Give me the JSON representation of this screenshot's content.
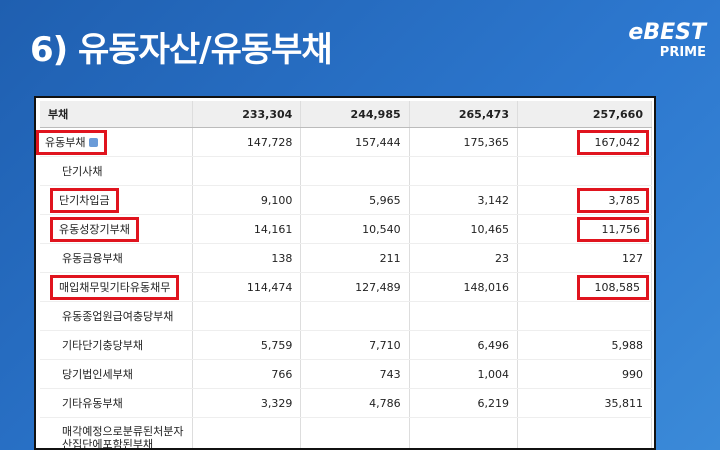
{
  "header": {
    "title": "6) 유동자산/유동부채"
  },
  "logo": {
    "brand": "eBEST",
    "sub": "PRIME"
  },
  "table": {
    "rows": [
      [
        "부채",
        "233,304",
        "244,985",
        "265,473",
        "257,660"
      ],
      [
        "유동부채",
        "147,728",
        "157,444",
        "175,365",
        "167,042"
      ],
      [
        "단기사채",
        null,
        null,
        null,
        null
      ],
      [
        "단기차입금",
        "9,100",
        "5,965",
        "3,142",
        "3,785"
      ],
      [
        "유동성장기부채",
        "14,161",
        "10,540",
        "10,465",
        "11,756"
      ],
      [
        "유동금융부채",
        "138",
        "211",
        "23",
        "127"
      ],
      [
        "매입채무및기타유동채무",
        "114,474",
        "127,489",
        "148,016",
        "108,585"
      ],
      [
        "유동종업원급여충당부채",
        null,
        null,
        null,
        null
      ],
      [
        "기타단기충당부채",
        "5,759",
        "7,710",
        "6,496",
        "5,988"
      ],
      [
        "당기법인세부채",
        "766",
        "743",
        "1,004",
        "990"
      ],
      [
        "기타유동부채",
        "3,329",
        "4,786",
        "6,219",
        "35,811"
      ],
      [
        "매각예정으로분류된처분자산집단에포함된부채",
        null,
        null,
        null,
        null
      ]
    ]
  }
}
